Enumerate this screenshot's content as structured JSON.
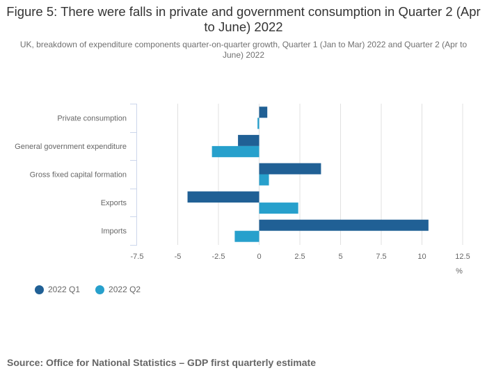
{
  "chart_data": {
    "type": "bar",
    "orientation": "horizontal",
    "title": "Figure 5: There were falls in private and government consumption in Quarter 2 (Apr to June) 2022",
    "subtitle": "UK, breakdown of expenditure components quarter-on-quarter growth, Quarter 1 (Jan to Mar) 2022 and Quarter 2 (Apr to June) 2022",
    "categories": [
      "Private consumption",
      "General government expenditure",
      "Gross fixed capital formation",
      "Exports",
      "Imports"
    ],
    "series": [
      {
        "name": "2022 Q1",
        "color": "#206095",
        "values": [
          0.5,
          -1.3,
          3.8,
          -4.4,
          10.4
        ]
      },
      {
        "name": "2022 Q2",
        "color": "#27a0cc",
        "values": [
          -0.1,
          -2.9,
          0.6,
          2.4,
          -1.5
        ]
      }
    ],
    "xlabel": "%",
    "ylabel": "",
    "xlim": [
      -7.5,
      12.5
    ],
    "xticks": [
      -7.5,
      -5,
      -2.5,
      0,
      2.5,
      5,
      7.5,
      10,
      12.5
    ],
    "xtick_labels": [
      "-7.5",
      "-5",
      "-2.5",
      "0",
      "2.5",
      "5",
      "7.5",
      "10",
      "12.5"
    ],
    "grid": true,
    "legend_position": "bottom-left"
  },
  "source": "Source: Office for National Statistics – GDP first quarterly estimate"
}
